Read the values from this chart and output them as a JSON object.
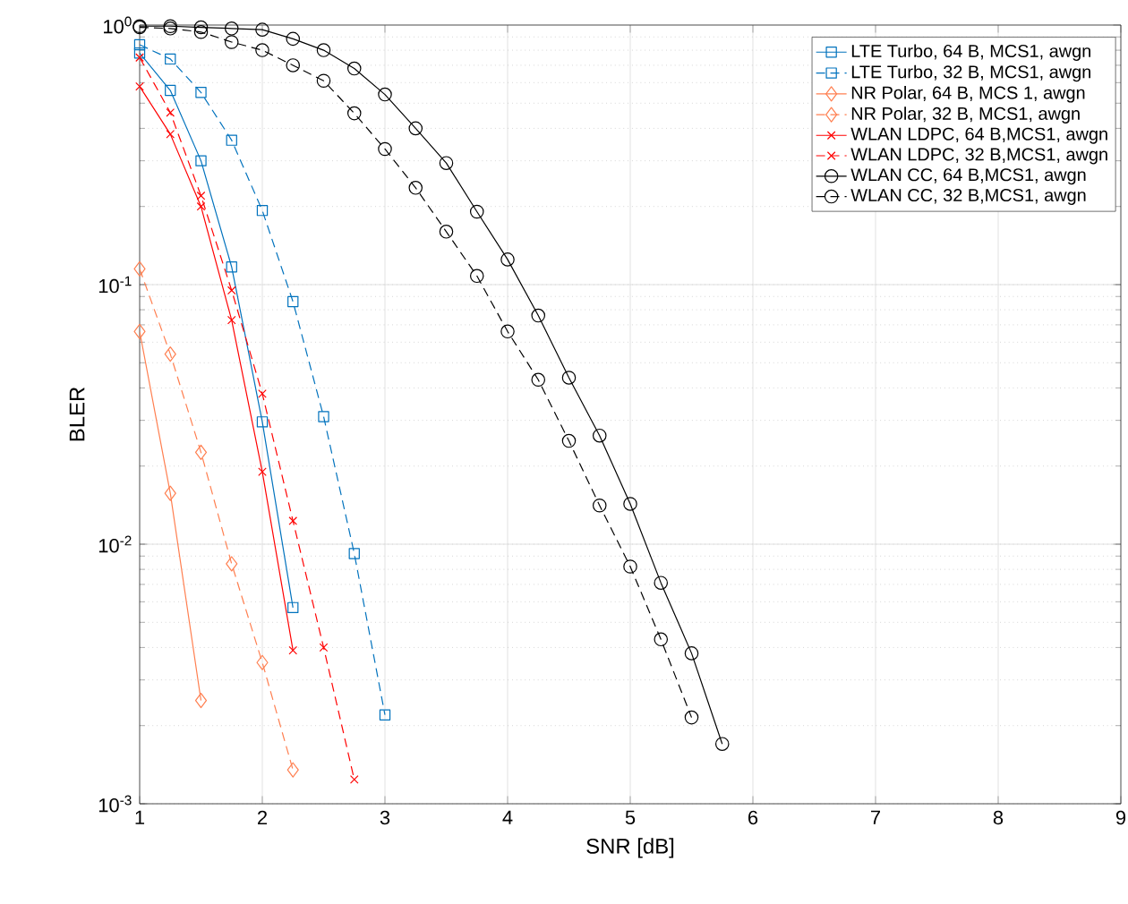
{
  "chart_data": {
    "type": "line",
    "xlabel": "SNR [dB]",
    "ylabel": "BLER",
    "log": "y",
    "grid": true,
    "legend": "top right",
    "xlim": [
      1,
      9
    ],
    "xticks": [
      1,
      2,
      3,
      4,
      5,
      6,
      7,
      8,
      9
    ],
    "ylim": [
      0.001,
      1
    ],
    "yticks": [
      {
        "value": 0.001,
        "label": "10$^{-3}$"
      },
      {
        "value": 0.01,
        "label": "10$^{-2}$"
      },
      {
        "value": 0.1,
        "label": "10$^{-1}$"
      },
      {
        "value": 1,
        "label": "10$^{0}$"
      }
    ],
    "series": [
      {
        "name": "LTE Turbo, 64 B, MCS1, awgn",
        "color": "#0072bd",
        "marker": "square",
        "line_style": "solid",
        "x": [
          1,
          1.25,
          1.5,
          1.75,
          2,
          2.25
        ],
        "values": [
          0.78,
          0.56,
          0.3,
          0.117,
          0.0296,
          0.0057
        ]
      },
      {
        "name": "LTE Turbo, 32 B, MCS1, awgn",
        "color": "#0072bd",
        "marker": "square",
        "line_style": "dashed",
        "x": [
          1,
          1.25,
          1.5,
          1.75,
          2,
          2.25,
          2.5,
          2.75,
          3
        ],
        "values": [
          0.84,
          0.74,
          0.55,
          0.36,
          0.193,
          0.086,
          0.031,
          0.0092,
          0.0022
        ]
      },
      {
        "name": "NR Polar, 64 B, MCS 1, awgn",
        "color": "#ff7f50",
        "marker": "diamond",
        "line_style": "solid",
        "x": [
          1,
          1.25,
          1.5
        ],
        "values": [
          0.066,
          0.0157,
          0.0025
        ]
      },
      {
        "name": "NR Polar, 32 B, MCS1, awgn",
        "color": "#ff7f50",
        "marker": "diamond",
        "line_style": "dashed",
        "x": [
          1,
          1.25,
          1.5,
          1.75,
          2,
          2.25
        ],
        "values": [
          0.115,
          0.054,
          0.0226,
          0.0084,
          0.0035,
          0.00135
        ]
      },
      {
        "name": "WLAN LDPC, 64 B,MCS1, awgn",
        "color": "#ff0000",
        "marker": "cross",
        "line_style": "solid",
        "x": [
          1,
          1.25,
          1.5,
          1.75,
          2,
          2.25
        ],
        "values": [
          0.58,
          0.38,
          0.2,
          0.073,
          0.019,
          0.0039
        ]
      },
      {
        "name": "WLAN LDPC, 32 B,MCS1, awgn",
        "color": "#ff0000",
        "marker": "cross",
        "line_style": "dashed",
        "x": [
          1,
          1.25,
          1.5,
          1.75,
          2,
          2.25,
          2.5,
          2.75
        ],
        "values": [
          0.75,
          0.46,
          0.22,
          0.095,
          0.038,
          0.0123,
          0.004,
          0.00124
        ]
      },
      {
        "name": "WLAN CC, 64 B,MCS1, awgn",
        "color": "#000000",
        "marker": "circle",
        "line_style": "solid",
        "x": [
          1,
          1.25,
          1.5,
          1.75,
          2,
          2.25,
          2.5,
          2.75,
          3,
          3.25,
          3.5,
          3.75,
          4,
          4.25,
          4.5,
          4.75,
          5,
          5.25,
          5.5,
          5.75
        ],
        "values": [
          0.99,
          0.99,
          0.98,
          0.97,
          0.96,
          0.885,
          0.8,
          0.68,
          0.54,
          0.4,
          0.294,
          0.191,
          0.125,
          0.076,
          0.0438,
          0.0262,
          0.0143,
          0.0071,
          0.0038,
          0.0017
        ]
      },
      {
        "name": "WLAN CC, 32 B,MCS1, awgn",
        "color": "#000000",
        "marker": "circle",
        "line_style": "dashed",
        "x": [
          1,
          1.25,
          1.5,
          1.75,
          2,
          2.25,
          2.5,
          2.75,
          3,
          3.25,
          3.5,
          3.75,
          4,
          4.25,
          4.5,
          4.75,
          5,
          5.25,
          5.5
        ],
        "values": [
          0.98,
          0.97,
          0.94,
          0.86,
          0.8,
          0.7,
          0.61,
          0.457,
          0.333,
          0.236,
          0.16,
          0.108,
          0.066,
          0.043,
          0.025,
          0.0141,
          0.0082,
          0.0043,
          0.00215
        ]
      }
    ]
  }
}
